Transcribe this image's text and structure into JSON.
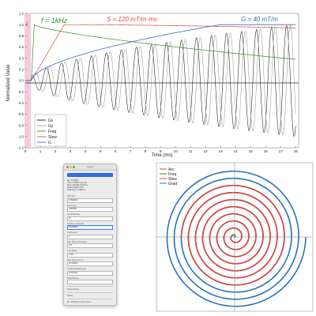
{
  "top_plot": {
    "ylabel": "Normalized Value",
    "xlabel": "Time (ms)",
    "yticks": [
      "1.2",
      "1.0",
      "0.8",
      "0.6",
      "0.4",
      "0.2",
      "0.0",
      "-0.2",
      "-0.4",
      "-0.6",
      "-0.8",
      "-1.0",
      "-1.2"
    ],
    "xticks": [
      "0",
      "1",
      "2",
      "3",
      "4",
      "5",
      "6",
      "7",
      "8",
      "9",
      "10",
      "11",
      "12",
      "13",
      "14",
      "15",
      "16",
      "17",
      "18"
    ],
    "legend": [
      "Gx",
      "Gy",
      "Freq",
      "Slew",
      "G"
    ],
    "annotations": {
      "freq": "f = 1kHz",
      "slew": "S = 120 mT/m·ms",
      "grad": "G = 40 mT/m"
    },
    "band_label": "ms",
    "colors": {
      "gx": "#1a1a1a",
      "gy": "#9a9a9a",
      "freq": "#2e8b2e",
      "slew": "#d9473a",
      "grad": "#3a6ab5",
      "band": "#f6c9dd"
    }
  },
  "dialog": {
    "title": "Spiral",
    "button_label": "Calculate",
    "info_lines": [
      "Arc: 12.345 m",
      "Time: 17.896 ms (17.9)",
      "Slew: 120.000 mT/m/ms",
      "Grad: 40.000 mT/m",
      "Total Time: 17.896 ms"
    ],
    "fields": [
      {
        "label": "FOV (m)",
        "value": "0.2500000"
      },
      {
        "label": "Res (mm)",
        "value": "0.900000"
      },
      {
        "label": "Arc Resolution",
        "value": "10"
      },
      {
        "label": "Number of Spirals",
        "value": "96.000000"
      },
      {
        "label": "Interleaves",
        "value": "1"
      },
      {
        "label": "Max Slew (mT/m/ms)",
        "value": "120"
      },
      {
        "label": "Freq (kHz)",
        "value": "1.000"
      },
      {
        "label": "Max Grad (mT/m)",
        "value": "40.000000"
      },
      {
        "label": "Gradient Raster (us)",
        "value": "10.000000"
      },
      {
        "label": "Result Name",
        "value": ""
      }
    ],
    "footer_lines": [
      "Preset Name",
      "Status",
      "Mr. SPiral/Arch (Precision)"
    ]
  },
  "spiral_plot": {
    "legend": [
      "Arc",
      "Freq",
      "Slew",
      "Grad"
    ],
    "colors": {
      "arc": "#d9473a",
      "freq": "#2e8b2e",
      "slew": "#d9473a",
      "grad": "#2a72b5"
    }
  }
}
